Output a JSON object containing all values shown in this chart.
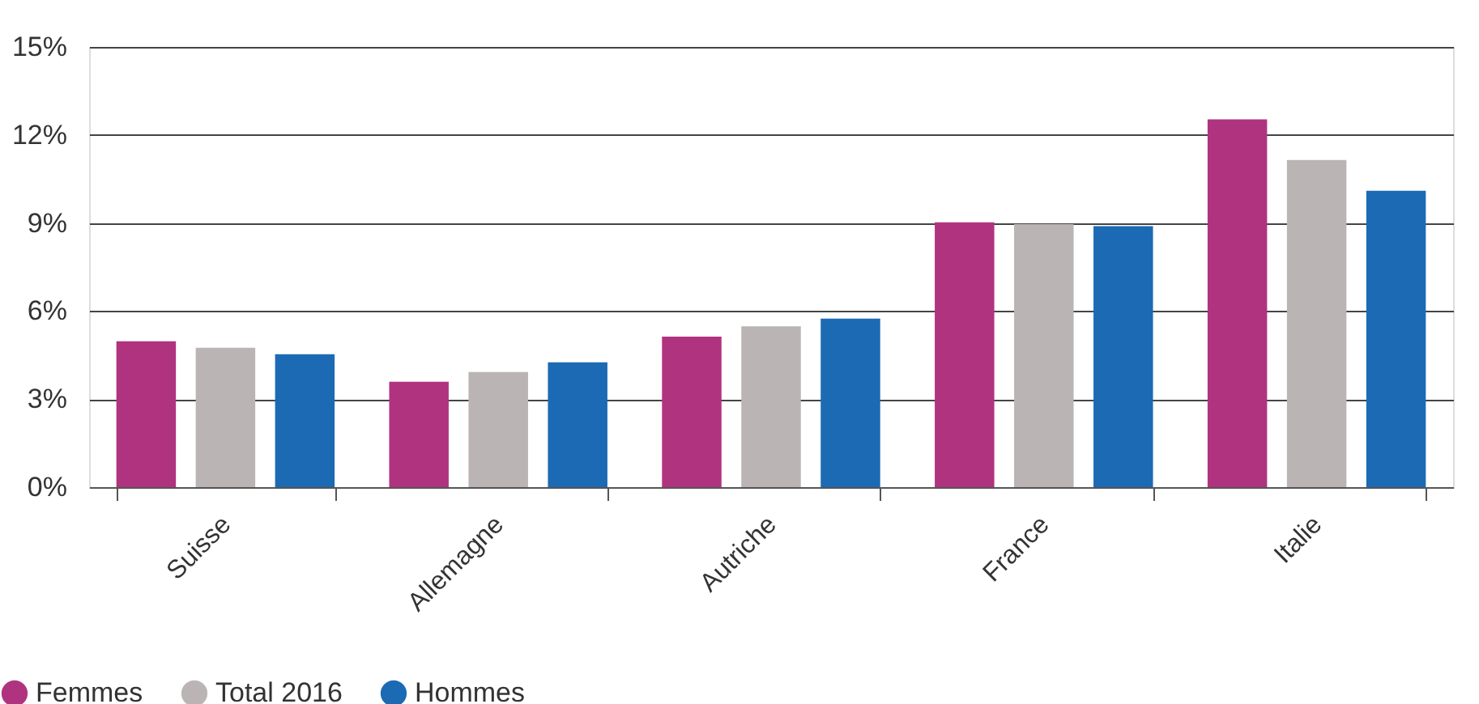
{
  "chart_data": {
    "type": "bar",
    "categories": [
      "Suisse",
      "Allemagne",
      "Autriche",
      "France",
      "Italie"
    ],
    "series": [
      {
        "name": "Femmes",
        "color": "#b03380",
        "values": [
          4.97,
          3.59,
          5.13,
          9.02,
          12.53
        ]
      },
      {
        "name": "Total 2016",
        "color": "#bab4b4",
        "values": [
          4.75,
          3.92,
          5.48,
          8.96,
          11.15
        ]
      },
      {
        "name": "Hommes",
        "color": "#1c6ab4",
        "values": [
          4.53,
          4.25,
          5.74,
          8.89,
          10.1
        ]
      }
    ],
    "ylim": [
      0,
      15
    ],
    "yticks": [
      {
        "value": 0,
        "label": "0%"
      },
      {
        "value": 3,
        "label": "3%"
      },
      {
        "value": 6,
        "label": "6%"
      },
      {
        "value": 9,
        "label": "9%"
      },
      {
        "value": 12,
        "label": "12%"
      },
      {
        "value": 15,
        "label": "15%"
      }
    ],
    "grid": "y",
    "legend": "bottom left"
  }
}
